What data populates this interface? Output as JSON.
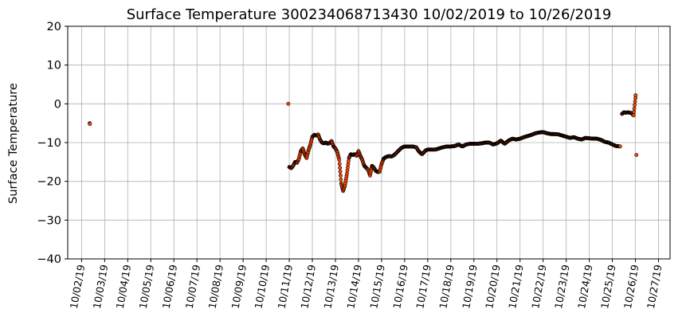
{
  "chart_data": {
    "type": "scatter",
    "title": "Surface Temperature 300234068713430  10/02/2019 to 10/26/2019",
    "xlabel": "",
    "ylabel": "Surface Temperature",
    "ylim": [
      -40,
      20
    ],
    "yticks": [
      -40,
      -30,
      -20,
      -10,
      0,
      10,
      20
    ],
    "yticklabels": [
      "−40",
      "−30",
      "−20",
      "−10",
      "0",
      "10",
      "20"
    ],
    "xlim": [
      "10/01/2019 09:36",
      "10/27/2019 12:00"
    ],
    "xticklabels": [
      "10/02/19",
      "10/03/19",
      "10/04/19",
      "10/05/19",
      "10/06/19",
      "10/07/19",
      "10/08/19",
      "10/09/19",
      "10/10/19",
      "10/11/19",
      "10/12/19",
      "10/13/19",
      "10/14/19",
      "10/15/19",
      "10/16/19",
      "10/17/19",
      "10/18/19",
      "10/19/19",
      "10/20/19",
      "10/21/19",
      "10/22/19",
      "10/23/19",
      "10/24/19",
      "10/25/19",
      "10/26/19",
      "10/27/19"
    ],
    "grid": true,
    "marker_color": "#ff4500",
    "marker_edge_color": "#000000",
    "points": [
      {
        "x": "10/02/2019 08:24",
        "y": -5.0
      },
      {
        "x": "10/02/2019 08:38",
        "y": -5.2
      },
      {
        "x": "10/10/2019 23:00",
        "y": 0.0
      },
      {
        "x": "10/11/2019 00:00",
        "y": -16.3
      },
      {
        "x": "10/11/2019 02:00",
        "y": -16.6
      },
      {
        "x": "10/11/2019 04:00",
        "y": -16.0
      },
      {
        "x": "10/11/2019 06:00",
        "y": -15.0
      },
      {
        "x": "10/11/2019 08:00",
        "y": -15.2
      },
      {
        "x": "10/11/2019 10:00",
        "y": -14.2
      },
      {
        "x": "10/11/2019 12:00",
        "y": -12.2
      },
      {
        "x": "10/11/2019 14:00",
        "y": -11.5
      },
      {
        "x": "10/11/2019 16:00",
        "y": -13.0
      },
      {
        "x": "10/11/2019 18:00",
        "y": -14.0
      },
      {
        "x": "10/11/2019 20:00",
        "y": -12.0
      },
      {
        "x": "10/11/2019 22:00",
        "y": -10.5
      },
      {
        "x": "10/12/2019 00:00",
        "y": -8.5
      },
      {
        "x": "10/12/2019 02:00",
        "y": -8.0
      },
      {
        "x": "10/12/2019 04:00",
        "y": -8.2
      },
      {
        "x": "10/12/2019 06:00",
        "y": -7.9
      },
      {
        "x": "10/12/2019 08:00",
        "y": -9.2
      },
      {
        "x": "10/12/2019 10:00",
        "y": -10.0
      },
      {
        "x": "10/12/2019 12:00",
        "y": -10.2
      },
      {
        "x": "10/12/2019 14:00",
        "y": -10.0
      },
      {
        "x": "10/12/2019 16:00",
        "y": -10.3
      },
      {
        "x": "10/12/2019 18:00",
        "y": -10.1
      },
      {
        "x": "10/12/2019 20:00",
        "y": -9.6
      },
      {
        "x": "10/12/2019 22:00",
        "y": -11.0
      },
      {
        "x": "10/13/2019 00:00",
        "y": -11.5
      },
      {
        "x": "10/13/2019 02:00",
        "y": -12.5
      },
      {
        "x": "10/13/2019 04:00",
        "y": -14.5
      },
      {
        "x": "10/13/2019 05:00",
        "y": -17.5
      },
      {
        "x": "10/13/2019 06:00",
        "y": -20.5
      },
      {
        "x": "10/13/2019 08:00",
        "y": -22.5
      },
      {
        "x": "10/13/2019 10:00",
        "y": -21.0
      },
      {
        "x": "10/13/2019 12:00",
        "y": -18.0
      },
      {
        "x": "10/13/2019 14:00",
        "y": -14.0
      },
      {
        "x": "10/13/2019 16:00",
        "y": -13.0
      },
      {
        "x": "10/13/2019 18:00",
        "y": -13.2
      },
      {
        "x": "10/13/2019 20:00",
        "y": -13.0
      },
      {
        "x": "10/13/2019 22:00",
        "y": -13.4
      },
      {
        "x": "10/14/2019 00:00",
        "y": -12.2
      },
      {
        "x": "10/14/2019 02:00",
        "y": -13.5
      },
      {
        "x": "10/14/2019 04:00",
        "y": -14.5
      },
      {
        "x": "10/14/2019 06:00",
        "y": -16.0
      },
      {
        "x": "10/14/2019 08:00",
        "y": -16.5
      },
      {
        "x": "10/14/2019 10:00",
        "y": -17.0
      },
      {
        "x": "10/14/2019 12:00",
        "y": -18.5
      },
      {
        "x": "10/14/2019 14:00",
        "y": -16.0
      },
      {
        "x": "10/14/2019 16:00",
        "y": -16.5
      },
      {
        "x": "10/14/2019 18:00",
        "y": -17.3
      },
      {
        "x": "10/14/2019 20:00",
        "y": -17.6
      },
      {
        "x": "10/14/2019 22:00",
        "y": -17.5
      },
      {
        "x": "10/15/2019 00:00",
        "y": -15.5
      },
      {
        "x": "10/15/2019 02:00",
        "y": -14.2
      },
      {
        "x": "10/15/2019 04:00",
        "y": -13.8
      },
      {
        "x": "10/15/2019 06:00",
        "y": -13.6
      },
      {
        "x": "10/15/2019 08:00",
        "y": -13.5
      },
      {
        "x": "10/15/2019 10:00",
        "y": -13.6
      },
      {
        "x": "10/15/2019 12:00",
        "y": -13.4
      },
      {
        "x": "10/15/2019 14:00",
        "y": -13.0
      },
      {
        "x": "10/15/2019 16:00",
        "y": -12.5
      },
      {
        "x": "10/15/2019 18:00",
        "y": -12.0
      },
      {
        "x": "10/15/2019 20:00",
        "y": -11.5
      },
      {
        "x": "10/15/2019 22:00",
        "y": -11.2
      },
      {
        "x": "10/16/2019 00:00",
        "y": -11.0
      },
      {
        "x": "10/16/2019 04:00",
        "y": -11.0
      },
      {
        "x": "10/16/2019 08:00",
        "y": -11.0
      },
      {
        "x": "10/16/2019 12:00",
        "y": -11.2
      },
      {
        "x": "10/16/2019 14:00",
        "y": -12.0
      },
      {
        "x": "10/16/2019 16:00",
        "y": -12.6
      },
      {
        "x": "10/16/2019 18:00",
        "y": -13.0
      },
      {
        "x": "10/16/2019 20:00",
        "y": -12.5
      },
      {
        "x": "10/16/2019 22:00",
        "y": -12.0
      },
      {
        "x": "10/17/2019 00:00",
        "y": -11.8
      },
      {
        "x": "10/17/2019 04:00",
        "y": -11.8
      },
      {
        "x": "10/17/2019 08:00",
        "y": -11.8
      },
      {
        "x": "10/17/2019 12:00",
        "y": -11.5
      },
      {
        "x": "10/17/2019 16:00",
        "y": -11.2
      },
      {
        "x": "10/17/2019 20:00",
        "y": -11.0
      },
      {
        "x": "10/18/2019 00:00",
        "y": -11.0
      },
      {
        "x": "10/18/2019 04:00",
        "y": -10.9
      },
      {
        "x": "10/18/2019 08:00",
        "y": -10.5
      },
      {
        "x": "10/18/2019 12:00",
        "y": -11.0
      },
      {
        "x": "10/18/2019 16:00",
        "y": -10.5
      },
      {
        "x": "10/18/2019 20:00",
        "y": -10.3
      },
      {
        "x": "10/19/2019 00:00",
        "y": -10.3
      },
      {
        "x": "10/19/2019 04:00",
        "y": -10.3
      },
      {
        "x": "10/19/2019 08:00",
        "y": -10.2
      },
      {
        "x": "10/19/2019 12:00",
        "y": -10.0
      },
      {
        "x": "10/19/2019 16:00",
        "y": -10.0
      },
      {
        "x": "10/19/2019 20:00",
        "y": -10.5
      },
      {
        "x": "10/20/2019 00:00",
        "y": -10.2
      },
      {
        "x": "10/20/2019 04:00",
        "y": -9.5
      },
      {
        "x": "10/20/2019 08:00",
        "y": -10.3
      },
      {
        "x": "10/20/2019 12:00",
        "y": -9.5
      },
      {
        "x": "10/20/2019 16:00",
        "y": -9.0
      },
      {
        "x": "10/20/2019 20:00",
        "y": -9.2
      },
      {
        "x": "10/21/2019 00:00",
        "y": -9.0
      },
      {
        "x": "10/21/2019 04:00",
        "y": -8.6
      },
      {
        "x": "10/21/2019 08:00",
        "y": -8.3
      },
      {
        "x": "10/21/2019 12:00",
        "y": -8.0
      },
      {
        "x": "10/21/2019 16:00",
        "y": -7.6
      },
      {
        "x": "10/21/2019 20:00",
        "y": -7.4
      },
      {
        "x": "10/22/2019 00:00",
        "y": -7.3
      },
      {
        "x": "10/22/2019 04:00",
        "y": -7.6
      },
      {
        "x": "10/22/2019 08:00",
        "y": -7.8
      },
      {
        "x": "10/22/2019 12:00",
        "y": -7.8
      },
      {
        "x": "10/22/2019 16:00",
        "y": -7.9
      },
      {
        "x": "10/22/2019 20:00",
        "y": -8.2
      },
      {
        "x": "10/23/2019 00:00",
        "y": -8.5
      },
      {
        "x": "10/23/2019 04:00",
        "y": -8.8
      },
      {
        "x": "10/23/2019 08:00",
        "y": -8.6
      },
      {
        "x": "10/23/2019 12:00",
        "y": -9.0
      },
      {
        "x": "10/23/2019 16:00",
        "y": -9.2
      },
      {
        "x": "10/23/2019 20:00",
        "y": -8.8
      },
      {
        "x": "10/24/2019 00:00",
        "y": -8.9
      },
      {
        "x": "10/24/2019 04:00",
        "y": -9.0
      },
      {
        "x": "10/24/2019 08:00",
        "y": -9.0
      },
      {
        "x": "10/24/2019 12:00",
        "y": -9.3
      },
      {
        "x": "10/24/2019 16:00",
        "y": -9.8
      },
      {
        "x": "10/24/2019 20:00",
        "y": -10.0
      },
      {
        "x": "10/25/2019 00:00",
        "y": -10.5
      },
      {
        "x": "10/25/2019 04:00",
        "y": -10.9
      },
      {
        "x": "10/25/2019 08:00",
        "y": -11.0
      },
      {
        "x": "10/25/2019 10:00",
        "y": -2.6
      },
      {
        "x": "10/25/2019 12:00",
        "y": -2.2
      },
      {
        "x": "10/25/2019 14:00",
        "y": -2.3
      },
      {
        "x": "10/25/2019 16:00",
        "y": -2.2
      },
      {
        "x": "10/25/2019 18:00",
        "y": -2.3
      },
      {
        "x": "10/25/2019 20:00",
        "y": -2.4
      },
      {
        "x": "10/25/2019 22:00",
        "y": -3.0
      },
      {
        "x": "10/26/2019 00:00",
        "y": 1.5
      },
      {
        "x": "10/26/2019 00:10",
        "y": 2.2
      },
      {
        "x": "10/26/2019 01:00",
        "y": -13.2
      }
    ]
  }
}
